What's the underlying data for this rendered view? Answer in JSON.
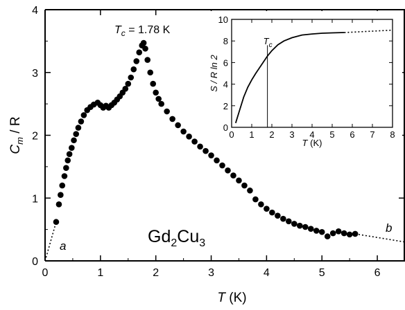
{
  "chart_data": [
    {
      "type": "scatter",
      "xlabel": "T",
      "xlabel_unit": "(K)",
      "ylabel": "C",
      "ylabel_sub": "m",
      "ylabel_rest": "/ R",
      "xlim": [
        0,
        6.5
      ],
      "ylim": [
        0,
        4
      ],
      "xticks": [
        0,
        1,
        2,
        3,
        4,
        5,
        6
      ],
      "yticks": [
        0,
        1,
        2,
        3,
        4
      ],
      "annotation_tc": {
        "prefix": "T",
        "sub": "c",
        "text": " = 1.78 K"
      },
      "compound": {
        "base1": "Gd",
        "sub1": "2",
        "base2": "Cu",
        "sub2": "3"
      },
      "curve_labels": {
        "a": "a",
        "b": "b"
      },
      "series": [
        {
          "marker": "filled-circle",
          "color": "#000000",
          "points": [
            [
              0.2,
              0.62
            ],
            [
              0.25,
              0.9
            ],
            [
              0.28,
              1.05
            ],
            [
              0.31,
              1.2
            ],
            [
              0.35,
              1.35
            ],
            [
              0.38,
              1.48
            ],
            [
              0.41,
              1.6
            ],
            [
              0.44,
              1.7
            ],
            [
              0.48,
              1.8
            ],
            [
              0.52,
              1.92
            ],
            [
              0.56,
              2.02
            ],
            [
              0.6,
              2.12
            ],
            [
              0.65,
              2.22
            ],
            [
              0.7,
              2.32
            ],
            [
              0.76,
              2.4
            ],
            [
              0.82,
              2.45
            ],
            [
              0.88,
              2.49
            ],
            [
              0.95,
              2.52
            ],
            [
              1.0,
              2.48
            ],
            [
              1.05,
              2.44
            ],
            [
              1.1,
              2.47
            ],
            [
              1.15,
              2.44
            ],
            [
              1.2,
              2.48
            ],
            [
              1.25,
              2.52
            ],
            [
              1.3,
              2.57
            ],
            [
              1.35,
              2.62
            ],
            [
              1.4,
              2.68
            ],
            [
              1.45,
              2.74
            ],
            [
              1.5,
              2.82
            ],
            [
              1.55,
              2.92
            ],
            [
              1.6,
              3.05
            ],
            [
              1.65,
              3.18
            ],
            [
              1.7,
              3.32
            ],
            [
              1.75,
              3.43
            ],
            [
              1.78,
              3.47
            ],
            [
              1.81,
              3.38
            ],
            [
              1.85,
              3.2
            ],
            [
              1.9,
              3.0
            ],
            [
              1.95,
              2.82
            ],
            [
              2.0,
              2.68
            ],
            [
              2.05,
              2.58
            ],
            [
              2.1,
              2.5
            ],
            [
              2.2,
              2.38
            ],
            [
              2.3,
              2.26
            ],
            [
              2.4,
              2.16
            ],
            [
              2.5,
              2.06
            ],
            [
              2.6,
              1.98
            ],
            [
              2.7,
              1.9
            ],
            [
              2.8,
              1.82
            ],
            [
              2.9,
              1.75
            ],
            [
              3.0,
              1.68
            ],
            [
              3.1,
              1.6
            ],
            [
              3.2,
              1.52
            ],
            [
              3.3,
              1.44
            ],
            [
              3.4,
              1.36
            ],
            [
              3.5,
              1.28
            ],
            [
              3.6,
              1.2
            ],
            [
              3.7,
              1.12
            ],
            [
              3.8,
              0.98
            ],
            [
              3.9,
              0.9
            ],
            [
              4.0,
              0.83
            ],
            [
              4.1,
              0.77
            ],
            [
              4.2,
              0.72
            ],
            [
              4.3,
              0.67
            ],
            [
              4.4,
              0.63
            ],
            [
              4.5,
              0.59
            ],
            [
              4.6,
              0.56
            ],
            [
              4.7,
              0.54
            ],
            [
              4.8,
              0.51
            ],
            [
              4.9,
              0.48
            ],
            [
              5.0,
              0.46
            ],
            [
              5.1,
              0.39
            ],
            [
              5.2,
              0.44
            ],
            [
              5.3,
              0.47
            ],
            [
              5.4,
              0.44
            ],
            [
              5.5,
              0.42
            ],
            [
              5.6,
              0.43
            ]
          ]
        }
      ],
      "extrapolation_a": [
        [
          0.0,
          0.0
        ],
        [
          0.2,
          0.62
        ]
      ],
      "extrapolation_b": [
        [
          5.6,
          0.43
        ],
        [
          6.5,
          0.3
        ]
      ],
      "tc_marker_x": 1.78
    },
    {
      "type": "line",
      "xlabel": "T",
      "xlabel_unit": "(K)",
      "ylabel": "S / R ln 2",
      "xlim": [
        0,
        8
      ],
      "ylim": [
        0,
        10
      ],
      "xticks": [
        0,
        1,
        2,
        3,
        4,
        5,
        6,
        7,
        8
      ],
      "yticks": [
        0,
        2,
        4,
        6,
        8,
        10
      ],
      "annotation_tc": {
        "prefix": "T",
        "sub": "c"
      },
      "tc_marker_x": 1.78,
      "series": [
        {
          "color": "#000000",
          "x": [
            0.2,
            0.4,
            0.6,
            0.8,
            1.0,
            1.2,
            1.4,
            1.6,
            1.78,
            2.0,
            2.3,
            2.6,
            3.0,
            3.5,
            4.0,
            4.5,
            5.0,
            5.6
          ],
          "y": [
            0.4,
            1.6,
            2.8,
            3.7,
            4.4,
            5.0,
            5.55,
            6.1,
            6.6,
            7.1,
            7.65,
            8.0,
            8.3,
            8.55,
            8.65,
            8.72,
            8.75,
            8.78
          ]
        }
      ],
      "extrapolation": {
        "x": [
          5.6,
          8.0
        ],
        "y": [
          8.78,
          9.0
        ]
      }
    }
  ]
}
